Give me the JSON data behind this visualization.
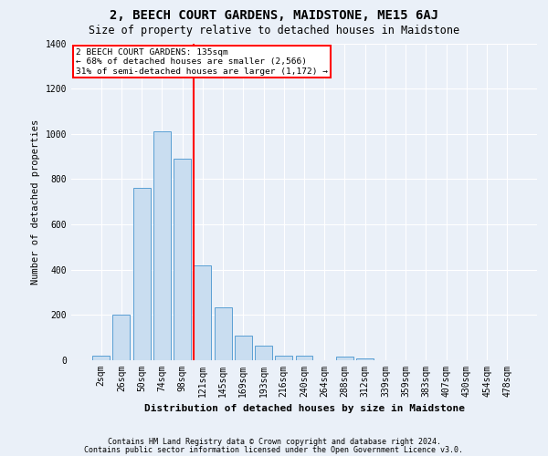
{
  "title": "2, BEECH COURT GARDENS, MAIDSTONE, ME15 6AJ",
  "subtitle": "Size of property relative to detached houses in Maidstone",
  "xlabel": "Distribution of detached houses by size in Maidstone",
  "ylabel": "Number of detached properties",
  "categories": [
    "2sqm",
    "26sqm",
    "50sqm",
    "74sqm",
    "98sqm",
    "121sqm",
    "145sqm",
    "169sqm",
    "193sqm",
    "216sqm",
    "240sqm",
    "264sqm",
    "288sqm",
    "312sqm",
    "339sqm",
    "359sqm",
    "383sqm",
    "407sqm",
    "430sqm",
    "454sqm",
    "478sqm"
  ],
  "bar_values": [
    20,
    200,
    760,
    1010,
    890,
    420,
    235,
    110,
    65,
    20,
    20,
    0,
    15,
    10,
    0,
    0,
    0,
    0,
    0,
    0,
    0
  ],
  "bar_color": "#c9ddf0",
  "bar_edge_color": "#5a9fd4",
  "annotation_text_lines": [
    "2 BEECH COURT GARDENS: 135sqm",
    "← 68% of detached houses are smaller (2,566)",
    "31% of semi-detached houses are larger (1,172) →"
  ],
  "annotation_box_color": "white",
  "annotation_box_edge_color": "red",
  "vline_color": "red",
  "vline_x_index": 4.55,
  "ylim": [
    0,
    1400
  ],
  "yticks": [
    0,
    200,
    400,
    600,
    800,
    1000,
    1200,
    1400
  ],
  "footer1": "Contains HM Land Registry data © Crown copyright and database right 2024.",
  "footer2": "Contains public sector information licensed under the Open Government Licence v3.0.",
  "background_color": "#eaf0f8",
  "plot_bg_color": "#eaf0f8",
  "grid_color": "white",
  "title_fontsize": 10,
  "subtitle_fontsize": 8.5,
  "ylabel_fontsize": 7.5,
  "xlabel_fontsize": 8,
  "tick_fontsize": 7,
  "footer_fontsize": 6
}
